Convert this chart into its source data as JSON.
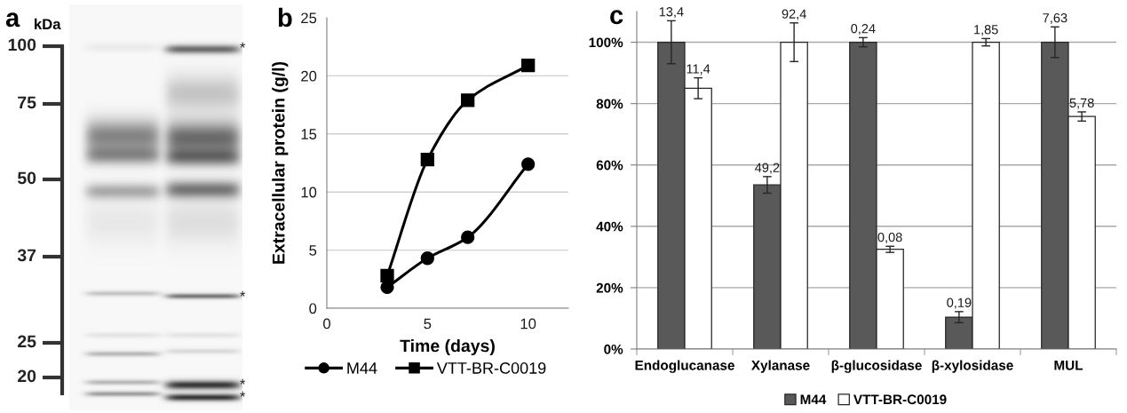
{
  "chart_data": [
    {
      "type": "other",
      "title": "a",
      "ylabel": "kDa",
      "annotations": [
        "100",
        "75",
        "50",
        "37",
        "25",
        "20",
        "*",
        "*",
        "*",
        "*"
      ]
    },
    {
      "type": "line",
      "title": "b",
      "xlabel": "Time (days)",
      "ylabel": "Extracellular protein (g/l)",
      "x": [
        3,
        5,
        7,
        10
      ],
      "xlim": [
        0,
        12
      ],
      "xticks": [
        0,
        5,
        10
      ],
      "ylim": [
        0,
        25
      ],
      "yticks": [
        0,
        5,
        10,
        15,
        20,
        25
      ],
      "grid": "y",
      "legend": "bottom",
      "line_style": "solid",
      "series": [
        {
          "name": "M44",
          "color": "#000000",
          "marker": "circle",
          "values": [
            1.8,
            4.3,
            6.1,
            12.4
          ]
        },
        {
          "name": "VTT-BR-C0019",
          "color": "#000000",
          "marker": "square",
          "values": [
            2.8,
            12.8,
            17.9,
            20.9
          ]
        }
      ]
    },
    {
      "type": "bar",
      "title": "c",
      "categories": [
        "Endoglucanase",
        "Xylanase",
        "β-glucosidase",
        "β-xylosidase",
        "MUL"
      ],
      "ylim": [
        0,
        110
      ],
      "yticks": [
        {
          "value": 0,
          "label": "0%"
        },
        {
          "value": 20,
          "label": "20%"
        },
        {
          "value": 40,
          "label": "40%"
        },
        {
          "value": 60,
          "label": "60%"
        },
        {
          "value": 80,
          "label": "80%"
        },
        {
          "value": 100,
          "label": "100%"
        }
      ],
      "grid": "y",
      "legend": "bottom",
      "series": [
        {
          "name": "M44",
          "color": "#595959",
          "values": [
            100,
            53.5,
            100,
            10.4,
            100
          ],
          "errors": [
            7,
            2.7,
            1.5,
            1.8,
            5
          ]
        },
        {
          "name": "VTT-BR-C0019",
          "color": "#ffffff",
          "values": [
            85,
            100,
            32.5,
            100,
            75.8
          ],
          "errors": [
            3.4,
            6.3,
            1,
            1.2,
            1.5
          ]
        }
      ],
      "annotations": [
        {
          "text": "13,4",
          "x": "Endoglucanase",
          "y": 100
        },
        {
          "text": "49,2",
          "x": "Xylanase",
          "y": 53.5
        },
        {
          "text": "0,24",
          "x": "β-glucosidase",
          "y": 100
        },
        {
          "text": "0,19",
          "x": "β-xylosidase",
          "y": 10.4
        },
        {
          "text": "7,63",
          "x": "MUL",
          "y": 100
        },
        {
          "text": "11,4",
          "x": "Endoglucanase",
          "y": 85
        },
        {
          "text": "92,4",
          "x": "Xylanase",
          "y": 100
        },
        {
          "text": "0,08",
          "x": "β-glucosidase",
          "y": 32.5
        },
        {
          "text": "1,85",
          "x": "β-xylosidase",
          "y": 100
        },
        {
          "text": "5,78",
          "x": "MUL",
          "y": 75.8
        }
      ]
    }
  ]
}
